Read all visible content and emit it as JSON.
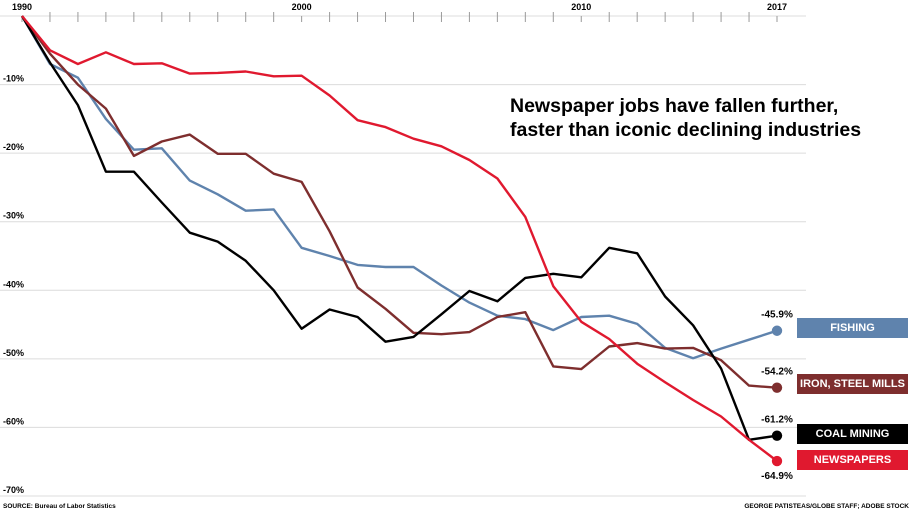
{
  "headline": {
    "line1": "Newspaper jobs have fallen further,",
    "line2": "faster than iconic declining industries"
  },
  "footer": {
    "source": "SOURCE: Bureau of Labor Statistics",
    "credit": "GEORGE PATISTEAS/GLOBE STAFF; ADOBE STOCK"
  },
  "chart_data": {
    "type": "line",
    "title": "Newspaper jobs have fallen further, faster than iconic declining industries",
    "xlabel": "",
    "ylabel": "",
    "x": [
      1990,
      1991,
      1992,
      1993,
      1994,
      1995,
      1996,
      1997,
      1998,
      1999,
      2000,
      2001,
      2002,
      2003,
      2004,
      2005,
      2006,
      2007,
      2008,
      2009,
      2010,
      2011,
      2012,
      2013,
      2014,
      2015,
      2016,
      2017
    ],
    "x_tick_labels": [
      "1990",
      "2000",
      "2010",
      "2017"
    ],
    "x_ticks": [
      1990,
      2000,
      2010,
      2017
    ],
    "xlim": [
      1990,
      2017
    ],
    "ylim": [
      -70,
      0
    ],
    "y_ticks": [
      -10,
      -20,
      -30,
      -40,
      -50,
      -60,
      -70
    ],
    "y_tick_labels": [
      "-10%",
      "-20%",
      "-30%",
      "-40%",
      "-50%",
      "-60%",
      "-70%"
    ],
    "grid": true,
    "series": [
      {
        "name": "FISHING",
        "color": "#5f83ad",
        "end_label": "-45.9%",
        "values": [
          0,
          -7,
          -9,
          -15,
          -19.5,
          -19.3,
          -24,
          -26,
          -28.4,
          -28.2,
          -33.8,
          -35,
          -36.3,
          -36.6,
          -36.6,
          -39.3,
          -41.8,
          -43.7,
          -44.2,
          -45.8,
          -43.9,
          -43.7,
          -44.9,
          -48.4,
          -49.9,
          -48.5,
          -47.2,
          -45.9
        ]
      },
      {
        "name": "IRON, STEEL MILLS",
        "color": "#7e2e2e",
        "end_label": "-54.2%",
        "values": [
          0,
          -5.5,
          -10,
          -13.5,
          -20.4,
          -18.3,
          -17.3,
          -20.1,
          -20.1,
          -23,
          -24.2,
          -31.4,
          -39.6,
          -42.7,
          -46.2,
          -46.4,
          -46.1,
          -43.9,
          -43.2,
          -51.1,
          -51.5,
          -48.2,
          -47.7,
          -48.5,
          -48.4,
          -50.2,
          -53.9,
          -54.2
        ]
      },
      {
        "name": "COAL MINING",
        "color": "#000000",
        "end_label": "-61.2%",
        "values": [
          0,
          -6.8,
          -13,
          -22.7,
          -22.7,
          -27.2,
          -31.6,
          -32.9,
          -35.7,
          -40,
          -45.6,
          -42.8,
          -43.9,
          -47.5,
          -46.8,
          -43.5,
          -40.1,
          -41.6,
          -38.2,
          -37.6,
          -38.1,
          -33.8,
          -34.6,
          -40.9,
          -45.1,
          -51.4,
          -61.8,
          -61.2
        ]
      },
      {
        "name": "NEWSPAPERS",
        "color": "#e0192f",
        "end_label": "-64.9%",
        "values": [
          0,
          -5,
          -7,
          -5.3,
          -7,
          -6.9,
          -8.4,
          -8.3,
          -8.1,
          -8.8,
          -8.7,
          -11.6,
          -15.2,
          -16.2,
          -17.9,
          -19,
          -21,
          -23.7,
          -29.3,
          -39.4,
          -44.6,
          -47.1,
          -50.7,
          -53.4,
          -56,
          -58.4,
          -61.8,
          -64.9
        ]
      }
    ]
  }
}
